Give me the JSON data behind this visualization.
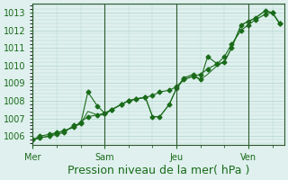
{
  "background_color": "#dff0ee",
  "grid_color": "#b0d4cc",
  "line_color": "#1a6b1a",
  "xlabel": "Pression niveau de la mer( hPa )",
  "xlabel_fontsize": 9,
  "ylabel_fontsize": 7,
  "tick_fontsize": 7,
  "ylim": [
    1005.5,
    1013.5
  ],
  "yticks": [
    1006,
    1007,
    1008,
    1009,
    1010,
    1011,
    1012,
    1013
  ],
  "day_labels": [
    "Mer",
    "Sam",
    "Jeu",
    "Ven"
  ],
  "day_positions": [
    0,
    3,
    6,
    9
  ],
  "series1_x": [
    0,
    0.3,
    0.7,
    1.0,
    1.3,
    1.7,
    2.0,
    2.3,
    2.7,
    3.0,
    3.3,
    3.7,
    4.0,
    4.3,
    4.7,
    5.0,
    5.3,
    5.7,
    6.0,
    6.3,
    6.7,
    7.0,
    7.3,
    7.7,
    8.0,
    8.3,
    8.7,
    9.0,
    9.3,
    9.7,
    10.0,
    10.3
  ],
  "series1_y": [
    1005.8,
    1005.9,
    1006.0,
    1006.1,
    1006.2,
    1006.6,
    1006.7,
    1008.5,
    1007.7,
    1007.3,
    1007.5,
    1007.8,
    1008.0,
    1008.1,
    1008.2,
    1007.1,
    1007.1,
    1007.8,
    1008.7,
    1009.3,
    1009.5,
    1009.2,
    1010.5,
    1010.1,
    1010.2,
    1011.0,
    1012.3,
    1012.5,
    1012.7,
    1013.1,
    1013.0,
    1012.4
  ],
  "series2_x": [
    0,
    0.3,
    0.7,
    1.0,
    1.3,
    1.7,
    2.0,
    2.3,
    2.7,
    3.0,
    3.3,
    3.7,
    4.0,
    4.3,
    4.7,
    5.0,
    5.3,
    5.7,
    6.0,
    6.3,
    6.7,
    7.0,
    7.3,
    7.7,
    8.0,
    8.3,
    8.7,
    9.0,
    9.3,
    9.7,
    10.0,
    10.3
  ],
  "series2_y": [
    1005.8,
    1005.9,
    1006.0,
    1006.2,
    1006.3,
    1006.5,
    1006.7,
    1007.4,
    1007.2,
    1007.2,
    1007.5,
    1007.8,
    1008.0,
    1008.1,
    1008.2,
    1007.1,
    1007.1,
    1007.8,
    1008.7,
    1009.2,
    1009.4,
    1009.2,
    1009.5,
    1010.0,
    1010.2,
    1011.0,
    1012.3,
    1012.5,
    1012.7,
    1013.1,
    1013.0,
    1012.4
  ],
  "series3_x": [
    0,
    0.3,
    0.7,
    1.0,
    1.3,
    1.7,
    2.0,
    2.3,
    2.7,
    3.0,
    3.3,
    3.7,
    4.0,
    4.3,
    4.7,
    5.0,
    5.3,
    5.7,
    6.0,
    6.3,
    6.7,
    7.0,
    7.3,
    7.7,
    8.0,
    8.3,
    8.7,
    9.0,
    9.3,
    9.7,
    10.0,
    10.3
  ],
  "series3_y": [
    1005.8,
    1006.0,
    1006.1,
    1006.2,
    1006.3,
    1006.5,
    1006.8,
    1007.1,
    1007.2,
    1007.3,
    1007.5,
    1007.8,
    1008.0,
    1008.1,
    1008.2,
    1008.3,
    1008.5,
    1008.6,
    1008.8,
    1009.2,
    1009.4,
    1009.5,
    1009.8,
    1010.1,
    1010.5,
    1011.2,
    1012.0,
    1012.3,
    1012.6,
    1012.9,
    1013.0,
    1012.4
  ]
}
